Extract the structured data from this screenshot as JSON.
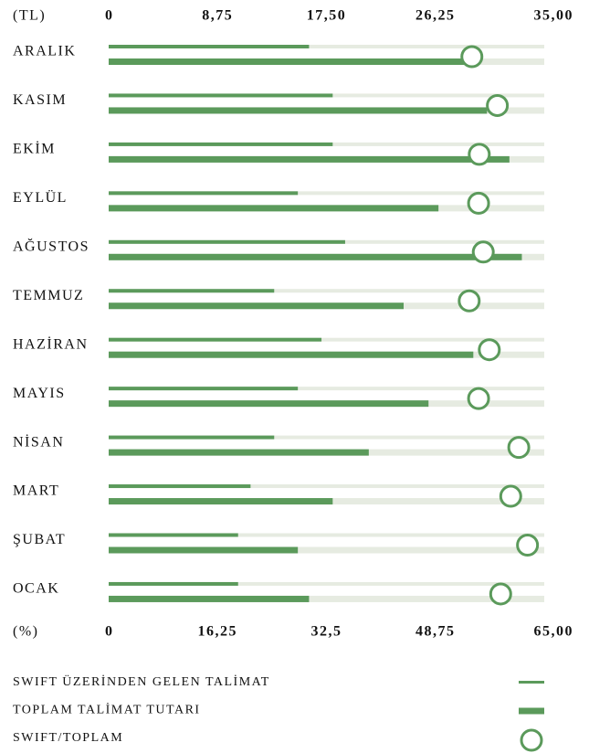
{
  "chart_data": {
    "type": "bullet",
    "x_label": "(TL)",
    "x2_label": "(%)",
    "categories": [
      "ARALIK",
      "KASIM",
      "EKİM",
      "EYLÜL",
      "AĞUSTOS",
      "TEMMUZ",
      "HAZİRAN",
      "MAYIS",
      "NİSAN",
      "MART",
      "ŞUBAT",
      "OCAK"
    ],
    "series": [
      {
        "name": "SWIFT ÜZERİNDEN GELEN TALİMAT",
        "color": "#5b9a5b",
        "values": [
          16.1,
          18.0,
          18.0,
          15.2,
          19.0,
          13.3,
          17.1,
          15.2,
          13.3,
          11.4,
          10.4,
          10.4
        ]
      },
      {
        "name": "TOPLAM TALİMAT TUTARI",
        "color": "#5b9a5b",
        "values": [
          28.7,
          30.4,
          32.2,
          26.5,
          33.2,
          23.7,
          29.3,
          25.7,
          20.9,
          18.0,
          15.2,
          16.1
        ]
      },
      {
        "name": "SWIFT/TOPLAM",
        "color": "#5b9a5b",
        "axis": "x2",
        "values": [
          54.2,
          58.0,
          55.3,
          55.2,
          55.9,
          53.8,
          56.8,
          55.2,
          61.2,
          60.0,
          62.5,
          58.5
        ]
      }
    ],
    "xlim": [
      0,
      35
    ],
    "xticks": [
      0,
      {
        "value": 8.75,
        "label": "8,75"
      },
      {
        "value": 17.5,
        "label": "17,50"
      },
      {
        "value": 26.25,
        "label": "26,25"
      },
      {
        "value": 35,
        "label": "35,00"
      }
    ],
    "x2lim": [
      0,
      65
    ],
    "x2ticks": [
      0,
      {
        "value": 16.25,
        "label": "16,25"
      },
      {
        "value": 32.5,
        "label": "32,5"
      },
      {
        "value": 48.75,
        "label": "48,75"
      },
      {
        "value": 65,
        "label": "65,00"
      }
    ],
    "track_color": "#e6ebe1"
  }
}
